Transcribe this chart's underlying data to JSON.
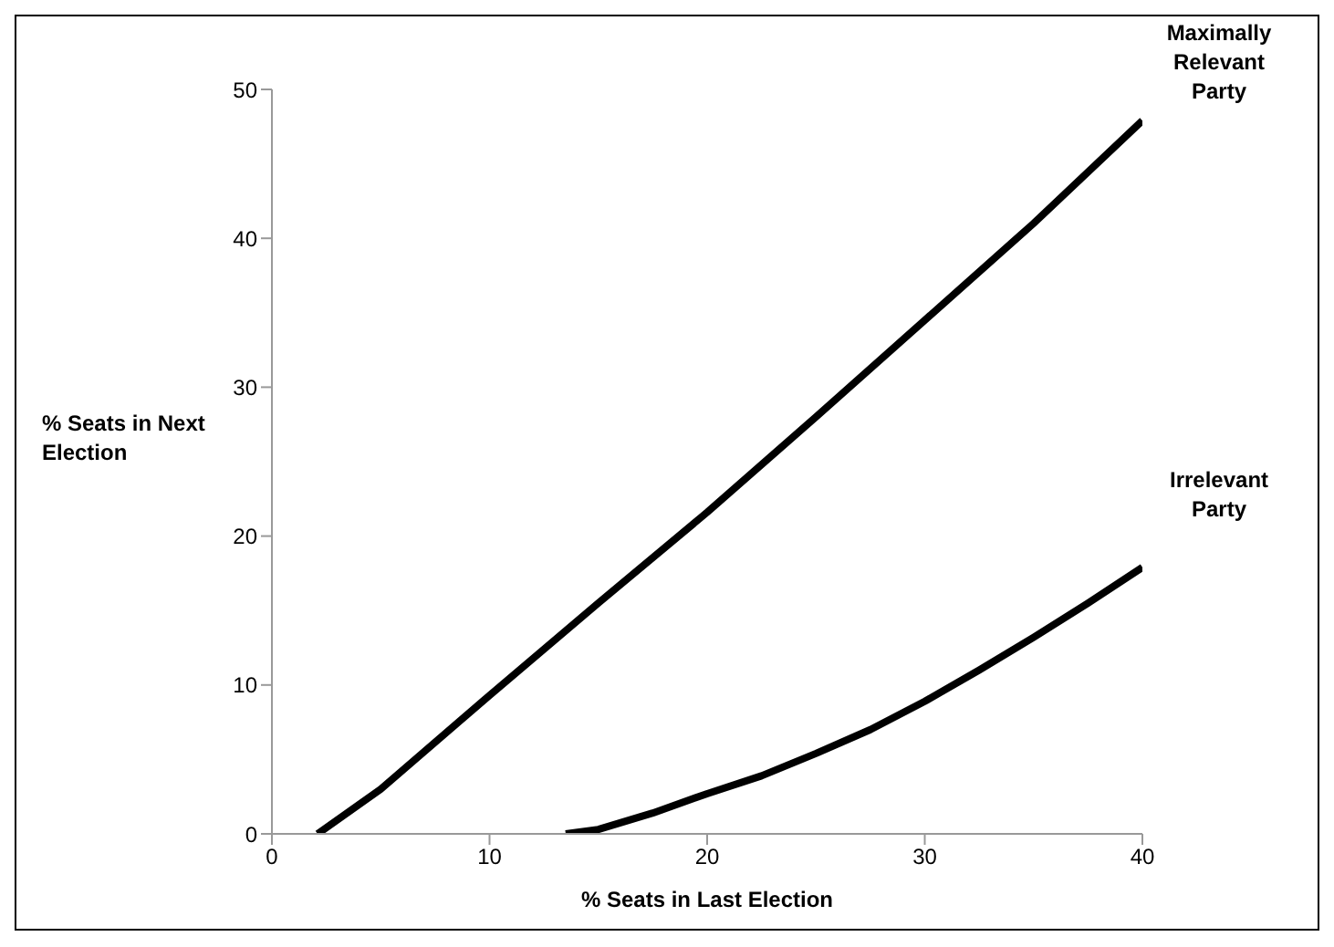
{
  "chart_data": {
    "type": "line",
    "xlabel": "% Seats in Last Election",
    "ylabel": "% Seats in Next Election",
    "xlim": [
      0,
      40
    ],
    "xticks": [
      0,
      10,
      20,
      30,
      40
    ],
    "ylim": [
      0,
      50
    ],
    "yticks": [
      0,
      10,
      20,
      30,
      40,
      50
    ],
    "grid": false,
    "legend": false,
    "marker": "none",
    "line_style": "solid",
    "series": [
      {
        "name": "Maximally Relevant Party",
        "color": "#000000",
        "x": [
          2.1,
          5,
          10,
          15,
          20,
          25,
          30,
          35,
          40
        ],
        "values": [
          0,
          3,
          9.3,
          15.5,
          21.6,
          28,
          34.5,
          41,
          47.9
        ]
      },
      {
        "name": "Irrelevant Party",
        "color": "#000000",
        "x": [
          13.5,
          15,
          17.5,
          20,
          22.5,
          25,
          27.5,
          30,
          32.5,
          35,
          37.5,
          40
        ],
        "values": [
          0,
          0.3,
          1.4,
          2.7,
          3.9,
          5.4,
          7,
          8.9,
          11,
          13.2,
          15.5,
          17.9
        ]
      }
    ]
  }
}
